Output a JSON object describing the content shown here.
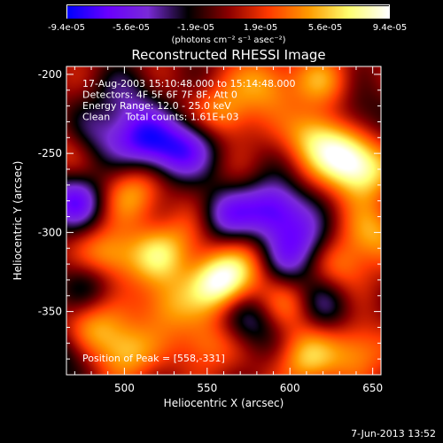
{
  "chart_data": {
    "type": "heatmap",
    "title": "Reconstructed RHESSI Image",
    "xlabel": "Heliocentric X (arcsec)",
    "ylabel": "Heliocentric Y (arcsec)",
    "xlim": [
      465,
      655
    ],
    "ylim": [
      -390,
      -195
    ],
    "x_ticks": [
      500,
      550,
      600,
      650
    ],
    "y_ticks": [
      -200,
      -250,
      -300,
      -350
    ],
    "colorbar": {
      "ticks": [
        "-9.4e-05",
        "-5.6e-05",
        "-1.9e-05",
        "1.9e-05",
        "5.6e-05",
        "9.4e-05"
      ],
      "range": [
        -9.4e-05,
        9.4e-05
      ],
      "unit": "(photons cm⁻² s⁻¹ asec⁻²)",
      "colormap": [
        "#0000ff",
        "#6a00ff",
        "#7a2bd8",
        "#000000",
        "#8b0000",
        "#ff3a00",
        "#ff9a00",
        "#ffff70",
        "#ffffff"
      ]
    },
    "annotations": [
      "17-Aug-2003 15:10:48.000 to 15:14:48.000",
      "Detectors: 4F 5F 6F 7F 8F, Att 0",
      "Energy Range: 12.0 - 25.0 keV",
      "Clean     Total counts: 1.61E+03"
    ],
    "peak_label": "Position of Peak = [558,-331]",
    "peak": [
      558,
      -331
    ],
    "sources": [
      {
        "x": 558,
        "y": -331,
        "v": 1.0
      },
      {
        "x": 632,
        "y": -252,
        "v": 0.75
      },
      {
        "x": 614,
        "y": -238,
        "v": 0.6
      },
      {
        "x": 645,
        "y": -262,
        "v": 0.6
      },
      {
        "x": 560,
        "y": -225,
        "v": 0.55
      },
      {
        "x": 585,
        "y": -205,
        "v": 0.5
      },
      {
        "x": 490,
        "y": -315,
        "v": 0.65
      },
      {
        "x": 520,
        "y": -315,
        "v": 0.55
      },
      {
        "x": 505,
        "y": -275,
        "v": 0.5
      },
      {
        "x": 480,
        "y": -360,
        "v": 0.5
      },
      {
        "x": 500,
        "y": -375,
        "v": 0.6
      },
      {
        "x": 548,
        "y": -370,
        "v": 0.45
      },
      {
        "x": 525,
        "y": -345,
        "v": 0.5
      },
      {
        "x": 610,
        "y": -380,
        "v": 0.55
      },
      {
        "x": 640,
        "y": -375,
        "v": 0.5
      },
      {
        "x": 600,
        "y": -345,
        "v": 0.45
      },
      {
        "x": 630,
        "y": -320,
        "v": 0.45
      },
      {
        "x": 650,
        "y": -300,
        "v": 0.5
      },
      {
        "x": 470,
        "y": -245,
        "v": 0.35
      },
      {
        "x": 540,
        "y": -300,
        "v": 0.3
      },
      {
        "x": 580,
        "y": -320,
        "v": 0.35
      },
      {
        "x": 620,
        "y": -205,
        "v": 0.45
      },
      {
        "x": 590,
        "y": -285,
        "v": -0.8
      },
      {
        "x": 560,
        "y": -290,
        "v": -0.6
      },
      {
        "x": 595,
        "y": -320,
        "v": -0.5
      },
      {
        "x": 510,
        "y": -240,
        "v": -0.7
      },
      {
        "x": 530,
        "y": -250,
        "v": -0.6
      },
      {
        "x": 480,
        "y": -240,
        "v": -0.5
      },
      {
        "x": 470,
        "y": -280,
        "v": -0.7
      },
      {
        "x": 480,
        "y": -330,
        "v": -0.4
      },
      {
        "x": 610,
        "y": -305,
        "v": -0.5
      },
      {
        "x": 620,
        "y": -345,
        "v": -0.45
      },
      {
        "x": 575,
        "y": -355,
        "v": -0.45
      },
      {
        "x": 545,
        "y": -240,
        "v": -0.35
      },
      {
        "x": 500,
        "y": -215,
        "v": -0.35
      },
      {
        "x": 640,
        "y": -225,
        "v": -0.3
      },
      {
        "x": 465,
        "y": -375,
        "v": -0.4
      }
    ]
  },
  "footer": {
    "timestamp": "7-Jun-2013 13:52"
  }
}
